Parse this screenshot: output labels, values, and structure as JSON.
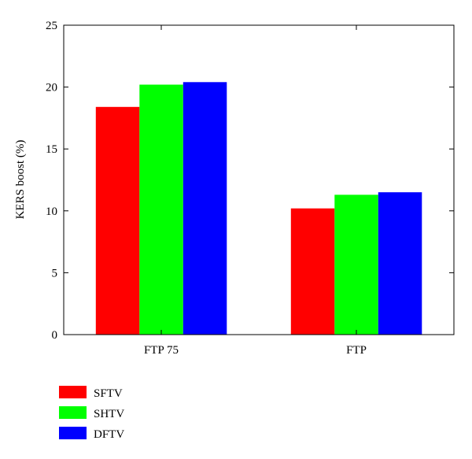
{
  "chart_data": {
    "type": "bar",
    "title": "",
    "xlabel": "",
    "ylabel": "KERS boost (%)",
    "categories": [
      "FTP 75",
      "FTP"
    ],
    "series": [
      {
        "name": "SFTV",
        "color": "#ff0000",
        "values": [
          18.4,
          10.2
        ]
      },
      {
        "name": "SHTV",
        "color": "#00ff00",
        "values": [
          20.2,
          11.3
        ]
      },
      {
        "name": "DFTV",
        "color": "#0000ff",
        "values": [
          20.4,
          11.5
        ]
      }
    ],
    "ylim": [
      0,
      25
    ],
    "yticks": [
      0,
      5,
      10,
      15,
      20,
      25
    ],
    "grid": false,
    "legend_position": "bottom-left"
  }
}
